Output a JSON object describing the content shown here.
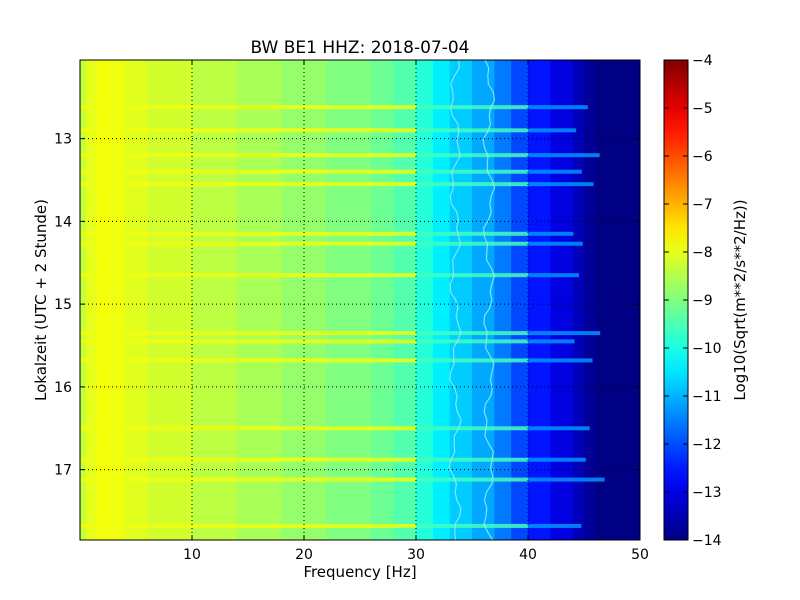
{
  "chart_data": {
    "type": "heatmap",
    "title": "BW BE1 HHZ: 2018-07-04",
    "xlabel": "Frequency [Hz]",
    "ylabel": "Lokalzeit (UTC + 2 Stunde)",
    "xlim": [
      0,
      50
    ],
    "ylim": [
      17.85,
      12.05
    ],
    "y_inverted": true,
    "x_ticks": [
      10,
      20,
      30,
      40,
      50
    ],
    "x_tick_labels": [
      "10",
      "20",
      "30",
      "40",
      "50"
    ],
    "y_ticks": [
      13,
      14,
      15,
      16,
      17
    ],
    "y_tick_labels": [
      "13",
      "14",
      "15",
      "16",
      "17"
    ],
    "grid": true,
    "grid_style": "dotted",
    "colormap": "jet",
    "colorbar": {
      "label": "Log10(Sqrt(m**2/s**2/Hz))",
      "range": [
        -14,
        -4
      ],
      "ticks": [
        -4,
        -5,
        -6,
        -7,
        -8,
        -9,
        -10,
        -11,
        -12,
        -13,
        -14
      ],
      "tick_labels": [
        "−4",
        "−5",
        "−6",
        "−7",
        "−8",
        "−9",
        "−10",
        "−11",
        "−12",
        "−13",
        "−14"
      ]
    },
    "spectrum_profile": {
      "frequency_hz": [
        0,
        0.5,
        1.5,
        2.5,
        4,
        6,
        10,
        14,
        18,
        22,
        26,
        28,
        30,
        31.5,
        33,
        35,
        37,
        38.5,
        40,
        42,
        44,
        45,
        46,
        50
      ],
      "log10_amplitude": [
        -8.6,
        -8.1,
        -7.9,
        -7.8,
        -8.0,
        -8.1,
        -8.3,
        -8.5,
        -8.7,
        -8.9,
        -9.1,
        -9.3,
        -9.6,
        -10.2,
        -10.6,
        -10.9,
        -11.3,
        -11.8,
        -12.3,
        -12.8,
        -13.3,
        -13.6,
        -13.9,
        -14.0
      ]
    },
    "spectral_lines_hz": [
      33.5,
      36.5
    ],
    "high_noise_times": [
      12.62,
      12.9,
      13.2,
      13.4,
      13.55,
      14.15,
      14.27,
      14.65,
      15.35,
      15.45,
      15.68,
      16.5,
      16.88,
      17.12,
      17.68
    ]
  }
}
